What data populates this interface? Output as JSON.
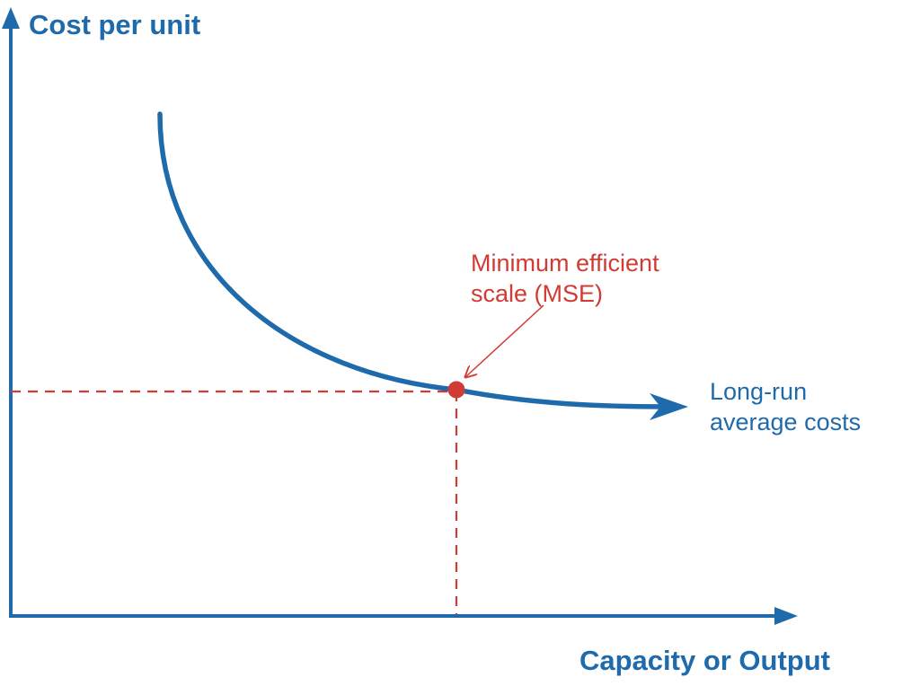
{
  "colors": {
    "axis": "#1F6AAB",
    "curve": "#1F6AAB",
    "highlight": "#D03B34",
    "background": "#FFFFFF"
  },
  "y_axis": {
    "label": "Cost per unit"
  },
  "x_axis": {
    "label": "Capacity or Output"
  },
  "curve": {
    "label_line1": "Long-run",
    "label_line2": "average costs"
  },
  "mse_point": {
    "label_line1": "Minimum efficient",
    "label_line2": "scale (MSE)"
  }
}
